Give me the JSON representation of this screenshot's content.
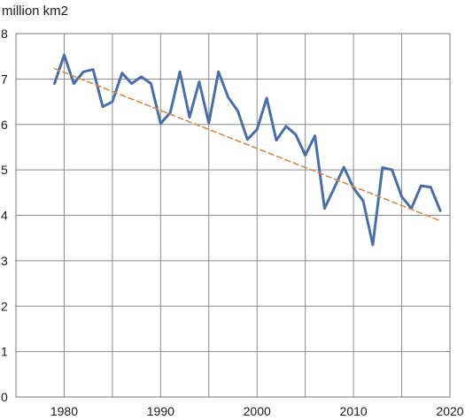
{
  "chart_data": {
    "type": "line",
    "title": "",
    "xlabel": "",
    "ylabel": "million km2",
    "xlim": [
      1975,
      2020
    ],
    "ylim": [
      0,
      8
    ],
    "x_ticks": [
      "1980",
      "1990",
      "2000",
      "2010",
      "2020"
    ],
    "y_ticks": [
      "0",
      "1",
      "2",
      "3",
      "4",
      "5",
      "6",
      "7",
      "8"
    ],
    "grid": true,
    "legend": "none",
    "series": [
      {
        "style": "solid",
        "color": "#4a6fa5",
        "x": [
          1979,
          1980,
          1981,
          1982,
          1983,
          1984,
          1985,
          1986,
          1987,
          1988,
          1989,
          1990,
          1991,
          1992,
          1993,
          1994,
          1995,
          1996,
          1997,
          1998,
          1999,
          2000,
          2001,
          2002,
          2003,
          2004,
          2005,
          2006,
          2007,
          2008,
          2009,
          2010,
          2011,
          2012,
          2013,
          2014,
          2015,
          2016,
          2017,
          2018,
          2019
        ],
        "y": [
          6.9,
          7.53,
          6.9,
          7.16,
          7.21,
          6.39,
          6.5,
          7.13,
          6.9,
          7.05,
          6.9,
          6.02,
          6.26,
          7.16,
          6.16,
          6.94,
          6.03,
          7.16,
          6.6,
          6.3,
          5.67,
          5.89,
          6.58,
          5.65,
          5.96,
          5.78,
          5.32,
          5.75,
          4.15,
          4.6,
          5.06,
          4.6,
          4.32,
          3.35,
          5.05,
          5.0,
          4.41,
          4.15,
          4.65,
          4.62,
          4.1
        ]
      },
      {
        "style": "dashed",
        "color": "#d08a4e",
        "x": [
          1979,
          2019
        ],
        "y": [
          7.23,
          3.88
        ]
      }
    ]
  }
}
